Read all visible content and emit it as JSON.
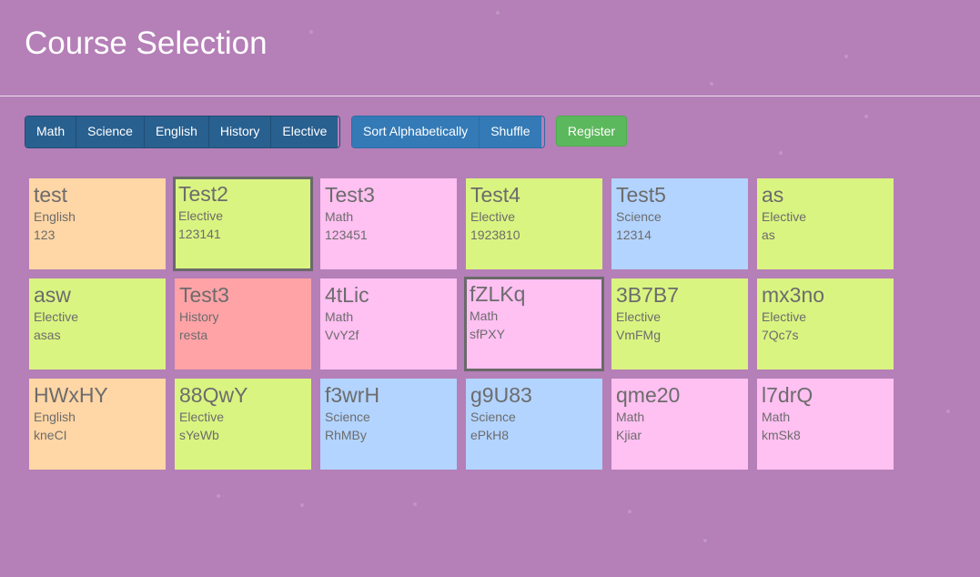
{
  "header": {
    "title": "Course Selection"
  },
  "toolbar": {
    "filters": [
      "Math",
      "Science",
      "English",
      "History",
      "Elective"
    ],
    "sort_label": "Sort Alphabetically",
    "shuffle_label": "Shuffle",
    "register_label": "Register"
  },
  "colors": {
    "background": "#b57fb7",
    "English": "#ffd6a5",
    "Elective": "#daf481",
    "Math": "#ffc0f2",
    "Science": "#b3d4ff",
    "History": "#ffa3a7"
  },
  "courses": [
    {
      "name": "test",
      "subject": "English",
      "code": "123",
      "selected": false
    },
    {
      "name": "Test2",
      "subject": "Elective",
      "code": "123141",
      "selected": true
    },
    {
      "name": "Test3",
      "subject": "Math",
      "code": "123451",
      "selected": false
    },
    {
      "name": "Test4",
      "subject": "Elective",
      "code": "1923810",
      "selected": false
    },
    {
      "name": "Test5",
      "subject": "Science",
      "code": "12314",
      "selected": false
    },
    {
      "name": "as",
      "subject": "Elective",
      "code": "as",
      "selected": false
    },
    {
      "name": "asw",
      "subject": "Elective",
      "code": "asas",
      "selected": false
    },
    {
      "name": "Test3",
      "subject": "History",
      "code": "resta",
      "selected": false
    },
    {
      "name": "4tLic",
      "subject": "Math",
      "code": "VvY2f",
      "selected": false
    },
    {
      "name": "fZLKq",
      "subject": "Math",
      "code": "sfPXY",
      "selected": true
    },
    {
      "name": "3B7B7",
      "subject": "Elective",
      "code": "VmFMg",
      "selected": false
    },
    {
      "name": "mx3no",
      "subject": "Elective",
      "code": "7Qc7s",
      "selected": false
    },
    {
      "name": "HWxHY",
      "subject": "English",
      "code": "kneCI",
      "selected": false
    },
    {
      "name": "88QwY",
      "subject": "Elective",
      "code": "sYeWb",
      "selected": false
    },
    {
      "name": "f3wrH",
      "subject": "Science",
      "code": "RhMBy",
      "selected": false
    },
    {
      "name": "g9U83",
      "subject": "Science",
      "code": "ePkH8",
      "selected": false
    },
    {
      "name": "qme20",
      "subject": "Math",
      "code": "Kjiar",
      "selected": false
    },
    {
      "name": "l7drQ",
      "subject": "Math",
      "code": "kmSk8",
      "selected": false
    }
  ]
}
